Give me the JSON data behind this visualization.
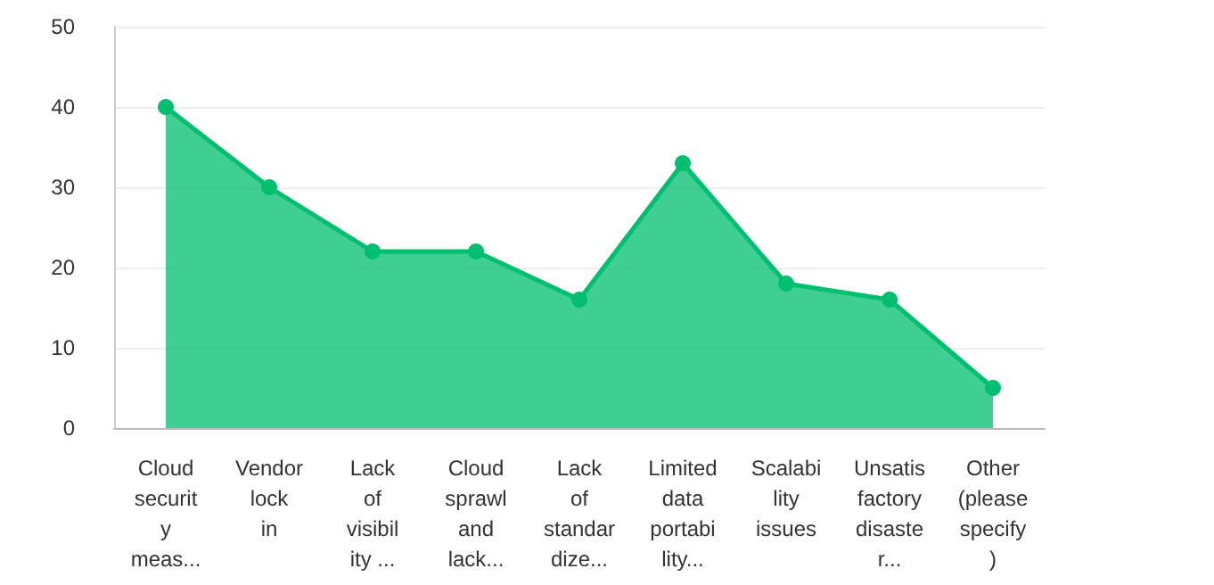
{
  "chart_data": {
    "type": "area",
    "categories": [
      "Cloud\nsecurit\ny\nmeas...",
      "Vendor\nlock\nin",
      "Lack\nof\nvisibil\nity ...",
      "Cloud\nsprawl\nand\nlack...",
      "Lack\nof\nstandar\ndize...",
      "Limited\ndata\nportabi\nlity...",
      "Scalabi\nlity\nissues",
      "Unsatis\nfactory\ndisaste\nr...",
      "Other\n(please\nspecify\n)"
    ],
    "series": [
      {
        "color": "#00bf6f",
        "values": [
          40,
          30,
          22,
          22,
          16,
          33,
          18,
          16,
          5
        ]
      }
    ],
    "ylim": [
      0,
      50
    ],
    "yticks": [
      0,
      10,
      20,
      30,
      40,
      50
    ],
    "grid": "y",
    "marker": "circle"
  }
}
